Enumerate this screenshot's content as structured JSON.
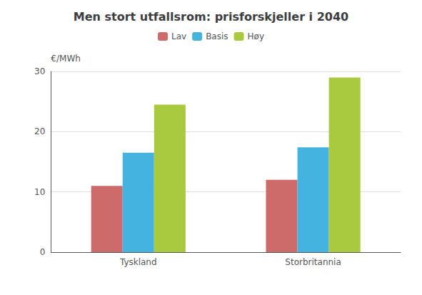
{
  "chart_data": {
    "type": "bar",
    "title": "Men stort utfallsrom: prisforskjeller i 2040",
    "ylabel": "€/MWh",
    "categories": [
      "Tyskland",
      "Storbritannia"
    ],
    "series": [
      {
        "name": "Lav",
        "color": "#CD6B6B",
        "values": [
          11.0,
          12.0
        ]
      },
      {
        "name": "Basis",
        "color": "#45B3E0",
        "values": [
          16.5,
          17.4
        ]
      },
      {
        "name": "Høy",
        "color": "#A9C93E",
        "values": [
          24.5,
          29.0
        ]
      }
    ],
    "ylim": [
      0,
      30
    ],
    "yticks": [
      0,
      10,
      20,
      30
    ],
    "grid": true,
    "legend": "top"
  }
}
